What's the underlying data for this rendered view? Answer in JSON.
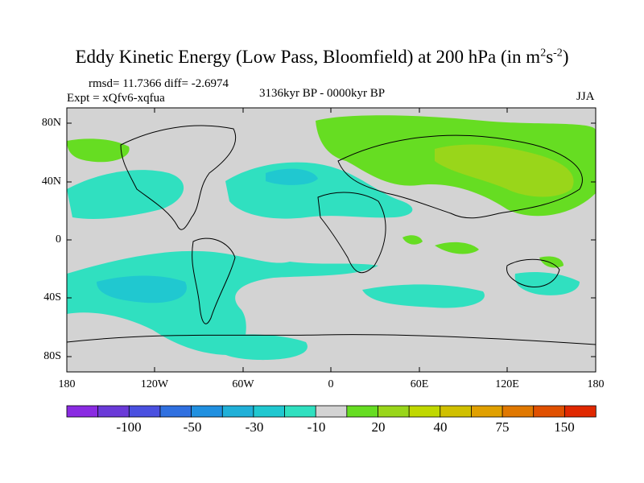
{
  "title": {
    "text": "Eddy Kinetic Energy (Low Pass, Bloomfield) at 200 hPa (in m",
    "sup1": "2",
    "mid": "s",
    "sup2": "-2",
    "end": ")"
  },
  "stats": {
    "rmsd": "rmsd= 11.7366 diff= -2.6974",
    "expt": "Expt = xQfv6-xqfua"
  },
  "period": "3136kyr BP - 0000kyr BP",
  "season": "JJA",
  "lat_labels": [
    "80N",
    "40N",
    "0",
    "40S",
    "80S"
  ],
  "lon_labels": [
    "180",
    "120W",
    "60W",
    "0",
    "60E",
    "120E",
    "180"
  ],
  "colorbar": {
    "colors": [
      "#8a2be2",
      "#6a3ad8",
      "#4a50e0",
      "#3070e0",
      "#2090e0",
      "#20b0d8",
      "#20c8d0",
      "#30e0c0",
      "#d3d3d3",
      "#66dd22",
      "#99d61a",
      "#c0d800",
      "#d0c000",
      "#e0a000",
      "#e07800",
      "#e05000",
      "#e02800"
    ],
    "labels": [
      "-100",
      "-50",
      "-30",
      "-10",
      "20",
      "40",
      "75",
      "150"
    ]
  },
  "colors": {
    "background": "#d3d3d3",
    "cyan": "#30e0c0",
    "light_cyan": "#20c8d0",
    "blue": "#20b0d8",
    "green": "#66dd22",
    "light_green": "#99d61a",
    "yellow_green": "#c0d800"
  }
}
